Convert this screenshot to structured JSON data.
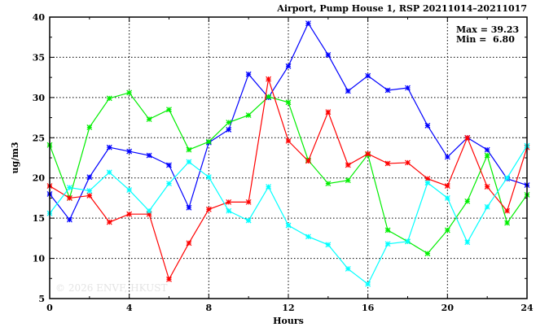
{
  "chart_data": {
    "type": "line",
    "title": "Airport, Pump House 1, RSP 20211014–20211017",
    "xlabel": "Hours",
    "ylabel": "ug/m3",
    "xlim": [
      0,
      24
    ],
    "ylim": [
      5,
      40
    ],
    "xticks": [
      0,
      4,
      8,
      12,
      16,
      20,
      24
    ],
    "yticks": [
      5,
      10,
      15,
      20,
      25,
      30,
      35,
      40
    ],
    "grid": true,
    "annotations": {
      "max": "Max = 39.23",
      "min": "Min =  6.80"
    },
    "watermark": "© 2026  ENVF, HKUST",
    "x": [
      0,
      1,
      2,
      3,
      4,
      5,
      6,
      7,
      8,
      9,
      10,
      11,
      12,
      13,
      14,
      15,
      16,
      17,
      18,
      19,
      20,
      21,
      22,
      23,
      24
    ],
    "series": [
      {
        "name": "blue",
        "color": "#0000ff",
        "values": [
          18.0,
          14.8,
          20.1,
          23.8,
          23.3,
          22.8,
          21.6,
          16.3,
          24.4,
          26.0,
          32.9,
          30.0,
          33.9,
          39.23,
          35.3,
          30.8,
          32.7,
          30.9,
          31.2,
          26.5,
          22.6,
          25.0,
          23.5,
          19.9,
          19.1
        ]
      },
      {
        "name": "green",
        "color": "#00ee00",
        "values": [
          24.1,
          17.5,
          26.3,
          29.9,
          30.6,
          27.3,
          28.5,
          23.5,
          24.5,
          26.9,
          27.8,
          30.1,
          29.4,
          22.2,
          19.3,
          19.7,
          22.9,
          13.5,
          12.1,
          10.6,
          13.5,
          17.1,
          22.8,
          14.4,
          17.9
        ]
      },
      {
        "name": "red",
        "color": "#ff0000",
        "values": [
          19.0,
          17.5,
          17.8,
          14.5,
          15.5,
          15.5,
          7.4,
          11.9,
          16.1,
          17.0,
          17.0,
          32.3,
          24.6,
          22.1,
          28.2,
          21.6,
          23.0,
          21.8,
          21.9,
          19.9,
          19.0,
          25.0,
          18.9,
          15.9,
          23.8
        ]
      },
      {
        "name": "cyan",
        "color": "#00ffff",
        "values": [
          15.6,
          18.8,
          18.4,
          20.7,
          18.5,
          15.9,
          19.3,
          22.0,
          20.1,
          15.9,
          14.7,
          18.9,
          14.1,
          12.7,
          11.7,
          8.7,
          6.8,
          11.8,
          12.1,
          19.4,
          17.5,
          12.0,
          16.4,
          20.0,
          24.0
        ]
      }
    ]
  }
}
